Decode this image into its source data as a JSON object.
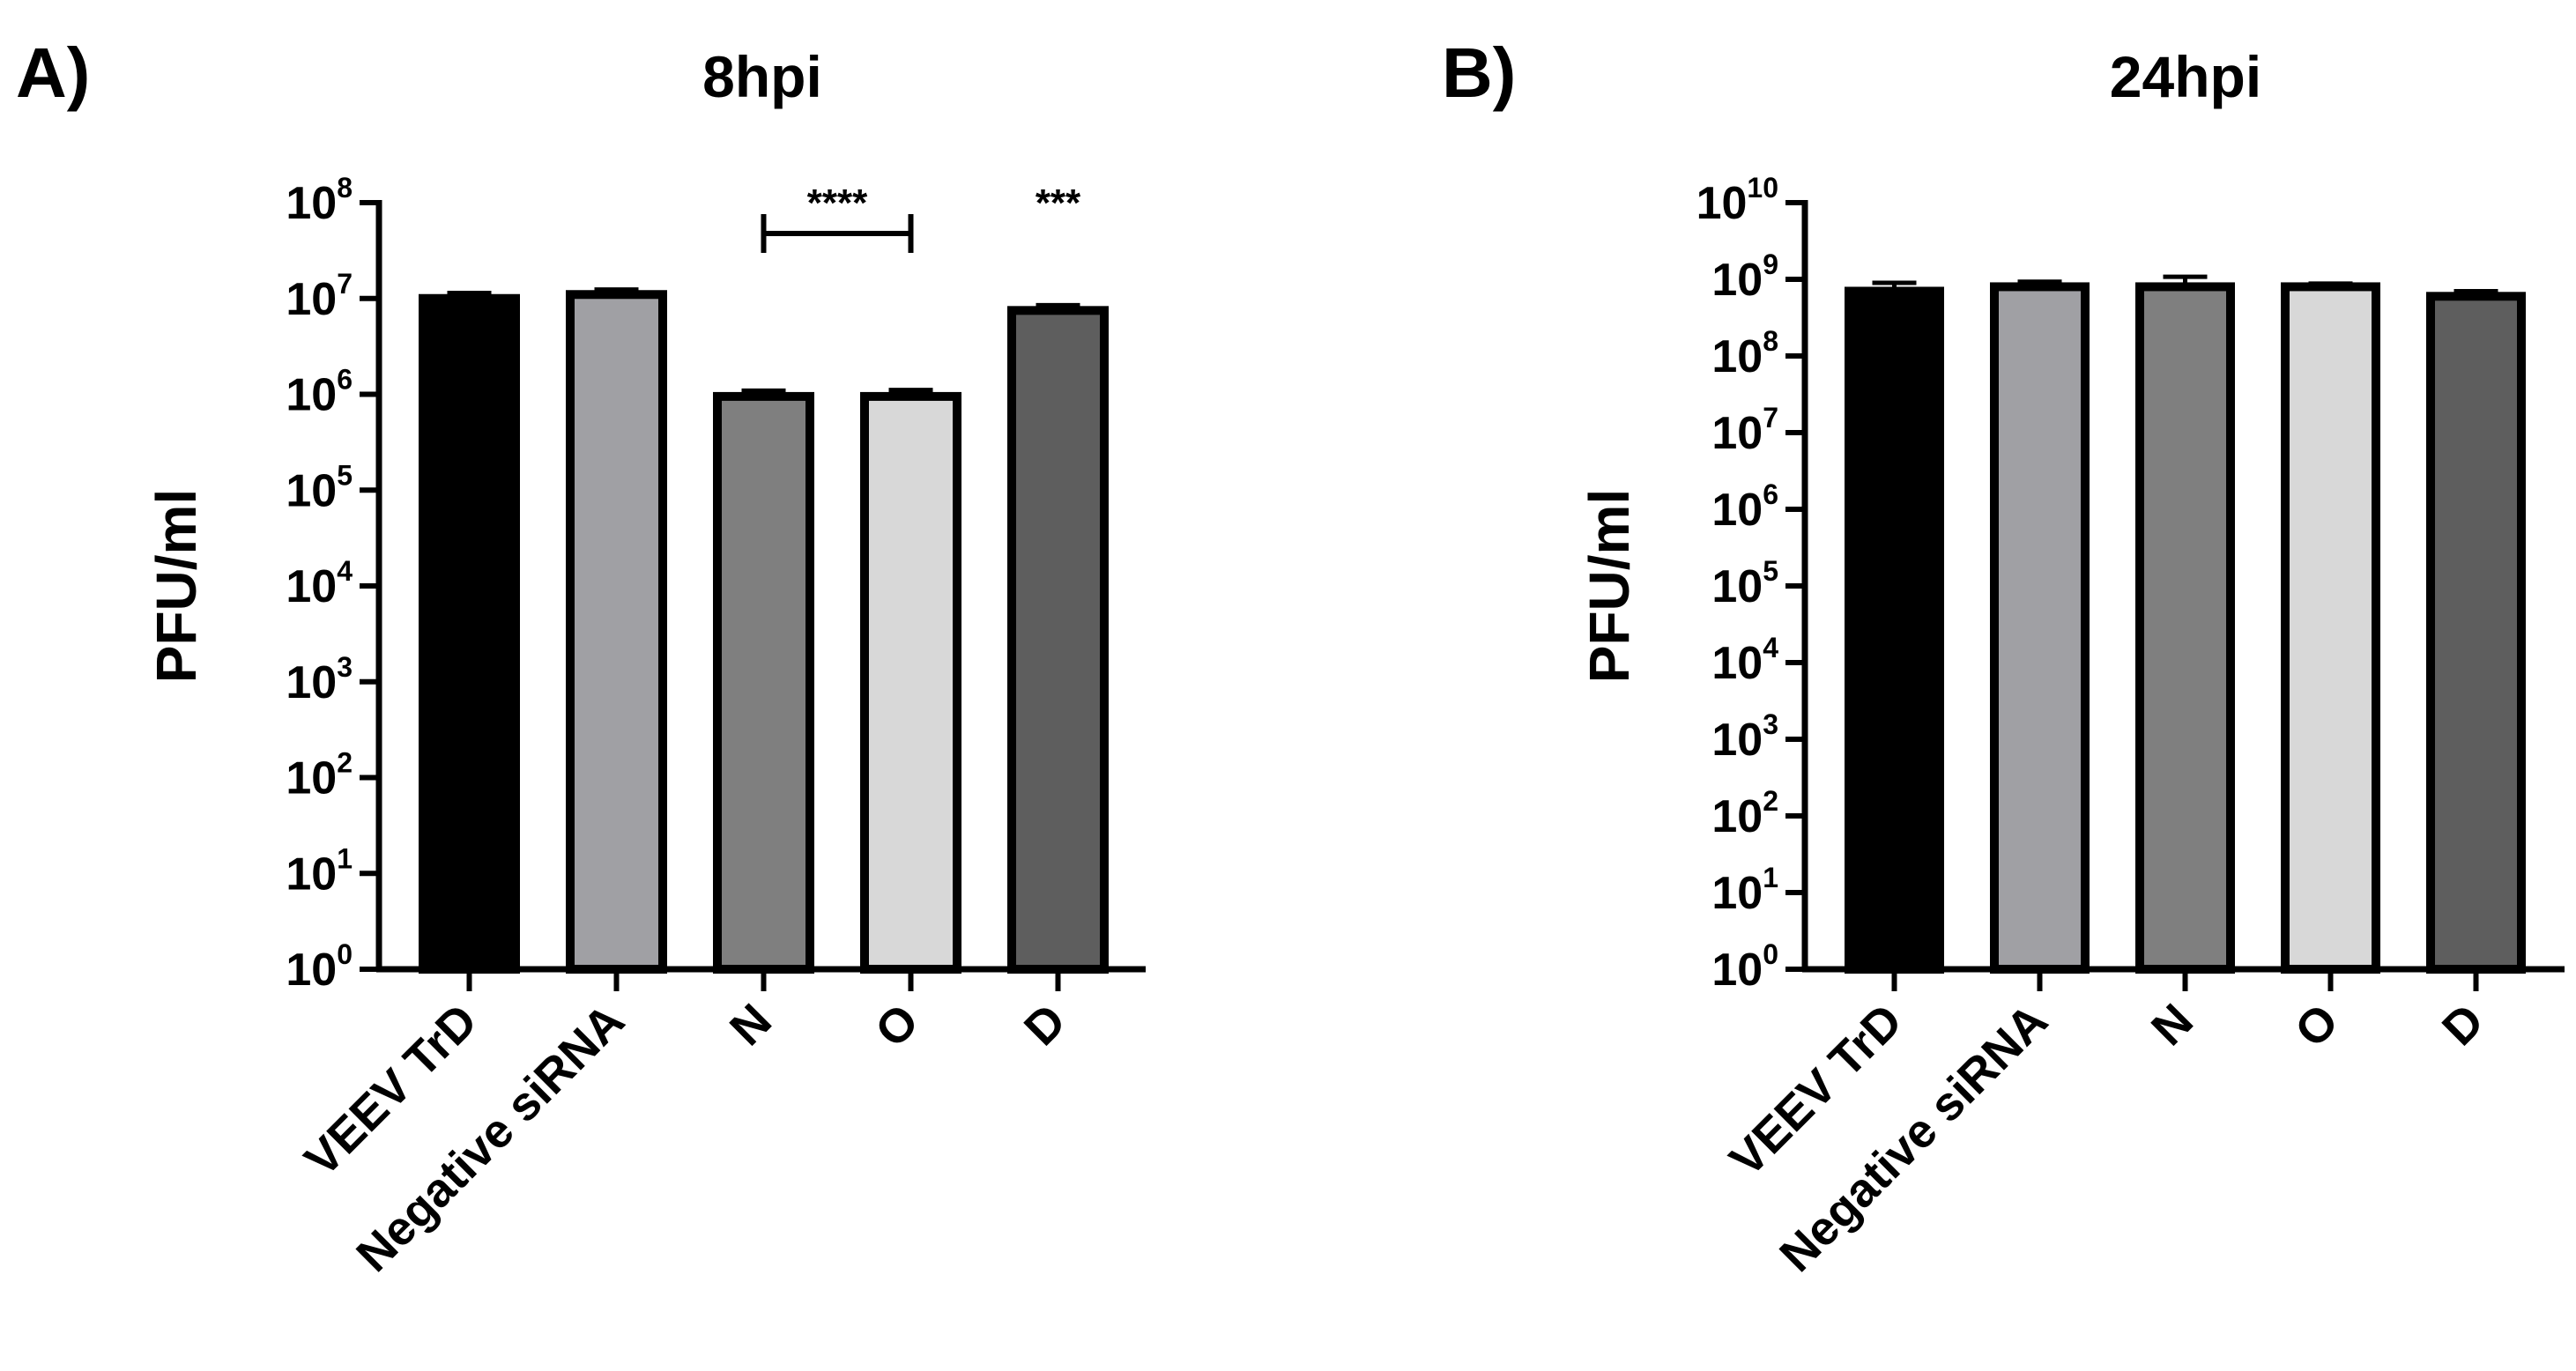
{
  "chart_data": [
    {
      "type": "bar",
      "panel_label": "A)",
      "title": "8hpi",
      "ylabel": "PFU/ml",
      "xlabel": "",
      "yscale": "log",
      "ylim": [
        1,
        100000000
      ],
      "ytick_base": "10",
      "ytick_exponents": [
        "0",
        "1",
        "2",
        "3",
        "4",
        "5",
        "6",
        "7",
        "8"
      ],
      "categories": [
        "VEEV TrD",
        "Negative siRNA",
        "N",
        "O",
        "D"
      ],
      "values": [
        10000000,
        11000000,
        950000,
        950000,
        7500000
      ],
      "errors": [
        1400000,
        1400000,
        140000,
        160000,
        1000000
      ],
      "colors": [
        "#000000",
        "#a0a0a4",
        "#7f7f7f",
        "#d8d8d8",
        "#5e5e5e"
      ],
      "significance": [
        {
          "label": "****",
          "bracket": [
            "N",
            "O"
          ]
        },
        {
          "label": "***",
          "bracket": [
            "D"
          ]
        }
      ]
    },
    {
      "type": "bar",
      "panel_label": "B)",
      "title": "24hpi",
      "ylabel": "PFU/ml",
      "xlabel": "",
      "yscale": "log",
      "ylim": [
        1,
        10000000000
      ],
      "ytick_base": "10",
      "ytick_exponents": [
        "0",
        "1",
        "2",
        "3",
        "4",
        "5",
        "6",
        "7",
        "8",
        "9",
        "10"
      ],
      "categories": [
        "VEEV TrD",
        "Negative siRNA",
        "N",
        "O",
        "D"
      ],
      "values": [
        700000000,
        800000000,
        800000000,
        800000000,
        600000000
      ],
      "errors": [
        200000000,
        130000000,
        280000000,
        80000000,
        100000000
      ],
      "colors": [
        "#000000",
        "#a0a0a4",
        "#7f7f7f",
        "#d8d8d8",
        "#5e5e5e"
      ],
      "significance": []
    }
  ]
}
